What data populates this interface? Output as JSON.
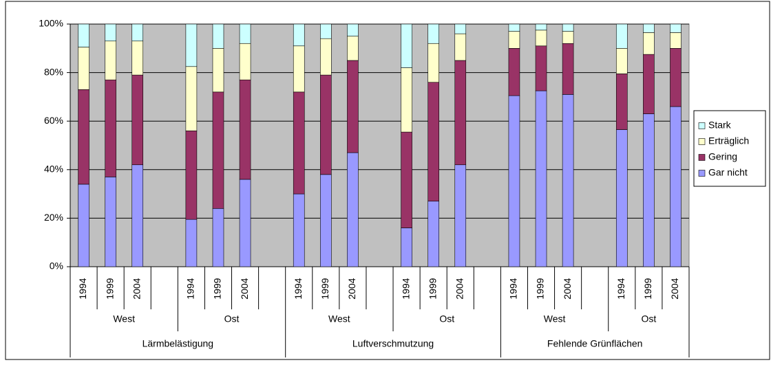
{
  "chart_data": {
    "type": "stacked_bar_100",
    "groups": [
      {
        "label": "Lärmbelästigung",
        "subgroups": [
          {
            "label": "West",
            "categories": [
              "1994",
              "1999",
              "2004",
              null
            ]
          },
          {
            "label": "Ost",
            "categories": [
              "1994",
              "1999",
              "2004",
              null
            ]
          }
        ]
      },
      {
        "label": "Luftverschmutzung",
        "subgroups": [
          {
            "label": "West",
            "categories": [
              "1994",
              "1999",
              "2004",
              null
            ]
          },
          {
            "label": "Ost",
            "categories": [
              "1994",
              "1999",
              "2004",
              null
            ]
          }
        ]
      },
      {
        "label": "Fehlende Grünflächen",
        "subgroups": [
          {
            "label": "West",
            "categories": [
              "1994",
              "1999",
              "2004",
              null
            ]
          },
          {
            "label": "Ost",
            "categories": [
              "1994",
              "1999",
              "2004"
            ]
          }
        ]
      }
    ],
    "series": [
      {
        "name": "Gar nicht",
        "color": "#9999ff",
        "values": [
          34,
          37,
          42,
          null,
          19.5,
          24,
          36,
          null,
          30,
          38,
          47,
          null,
          16,
          27,
          42,
          null,
          70.5,
          72.5,
          71,
          null,
          56.5,
          63,
          66
        ]
      },
      {
        "name": "Gering",
        "color": "#993366",
        "values": [
          39,
          40,
          37,
          null,
          36.5,
          48,
          41,
          null,
          42,
          41,
          38,
          null,
          39.5,
          49,
          43,
          null,
          19.5,
          18.5,
          21,
          null,
          23,
          24.5,
          24
        ]
      },
      {
        "name": "Erträglich",
        "color": "#ffffcc",
        "values": [
          17.5,
          16,
          14,
          null,
          26.5,
          18,
          15,
          null,
          19,
          15,
          10,
          null,
          26.5,
          16,
          11,
          null,
          7,
          6.5,
          5,
          null,
          10.5,
          9,
          6.5
        ]
      },
      {
        "name": "Stark",
        "color": "#ccffff",
        "values": [
          9.5,
          7,
          7,
          null,
          17.5,
          10,
          8,
          null,
          9,
          6,
          5,
          null,
          18,
          8,
          4,
          null,
          3,
          2.5,
          3,
          null,
          10,
          3.5,
          3.5
        ]
      }
    ],
    "ylim": [
      0,
      100
    ],
    "yticks": [
      {
        "value": 0,
        "label": "0%"
      },
      {
        "value": 20,
        "label": "20%"
      },
      {
        "value": 40,
        "label": "40%"
      },
      {
        "value": 60,
        "label": "60%"
      },
      {
        "value": 80,
        "label": "80%"
      },
      {
        "value": 100,
        "label": "100%"
      }
    ],
    "grid": true,
    "plot_background": "#c0c0c0",
    "legend": "right"
  }
}
